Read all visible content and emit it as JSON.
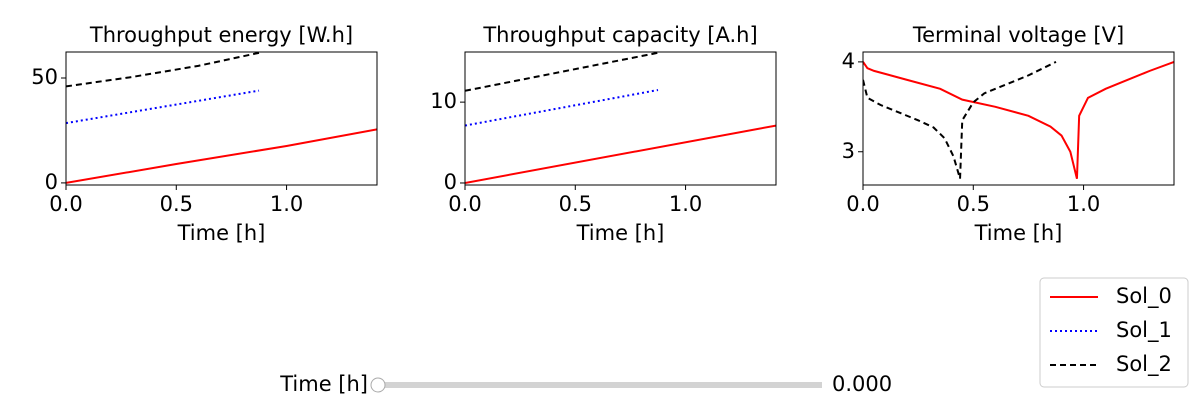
{
  "chart_data": [
    {
      "type": "line",
      "title": "Throughput energy [W.h]",
      "xlabel": "Time [h]",
      "xlim": [
        0,
        1.41
      ],
      "ylim": [
        -1,
        62.4
      ],
      "xticks": [
        {
          "value": 0,
          "label": "0.0"
        },
        0.5,
        {
          "value": 1,
          "label": "1.0"
        }
      ],
      "yticks": [
        0,
        50
      ],
      "series": [
        {
          "x": [
            0,
            0.5,
            1.0,
            1.41
          ],
          "values": [
            0,
            9,
            17.6,
            25.5
          ]
        },
        {
          "x": [
            0,
            0.875
          ],
          "values": [
            28.5,
            44
          ]
        },
        {
          "x": [
            0,
            0.3,
            0.6,
            0.875
          ],
          "values": [
            46,
            50.5,
            55.8,
            62
          ]
        }
      ]
    },
    {
      "type": "line",
      "title": "Throughput capacity [A.h]",
      "xlabel": "Time [h]",
      "xlim": [
        0,
        1.41
      ],
      "ylim": [
        -0.25,
        16.2
      ],
      "xticks": [
        {
          "value": 0,
          "label": "0.0"
        },
        0.5,
        {
          "value": 1,
          "label": "1.0"
        }
      ],
      "yticks": [
        0,
        10
      ],
      "series": [
        {
          "x": [
            0,
            1.41
          ],
          "values": [
            0,
            7.1
          ]
        },
        {
          "x": [
            0,
            0.875
          ],
          "values": [
            7.1,
            11.5
          ]
        },
        {
          "x": [
            0,
            0.875
          ],
          "values": [
            11.4,
            16.1
          ]
        }
      ]
    },
    {
      "type": "line",
      "title": "Terminal voltage [V]",
      "xlabel": "Time [h]",
      "xlim": [
        0,
        1.41
      ],
      "ylim": [
        2.63,
        4.11
      ],
      "xticks": [
        {
          "value": 0,
          "label": "0.0"
        },
        0.5,
        {
          "value": 1,
          "label": "1.0"
        }
      ],
      "yticks": [
        3,
        4
      ],
      "series": [
        {
          "x": [
            0,
            0.02,
            0.05,
            0.2,
            0.35,
            0.45,
            0.6,
            0.75,
            0.85,
            0.9,
            0.94,
            0.97,
            0.98,
            1.02,
            1.1,
            1.2,
            1.3,
            1.41
          ],
          "values": [
            4.0,
            3.93,
            3.9,
            3.8,
            3.7,
            3.58,
            3.5,
            3.4,
            3.28,
            3.18,
            3.0,
            2.7,
            3.4,
            3.6,
            3.7,
            3.8,
            3.9,
            4.0
          ]
        },
        {
          "x": [],
          "values": []
        },
        {
          "x": [
            0,
            0.02,
            0.08,
            0.15,
            0.25,
            0.32,
            0.37,
            0.41,
            0.44,
            0.45,
            0.5,
            0.55,
            0.65,
            0.75,
            0.875
          ],
          "values": [
            3.8,
            3.6,
            3.52,
            3.45,
            3.35,
            3.27,
            3.15,
            2.95,
            2.7,
            3.35,
            3.55,
            3.65,
            3.75,
            3.85,
            4.0
          ]
        }
      ]
    }
  ],
  "legend": {
    "loc": "lower right",
    "entries": [
      {
        "name": "Sol_0",
        "color": "#ff0000",
        "style": "solid"
      },
      {
        "name": "Sol_1",
        "color": "#0000ff",
        "style": "dotted"
      },
      {
        "name": "Sol_2",
        "color": "#000000",
        "style": "dashed"
      }
    ]
  },
  "slider": {
    "label": "Time [h]",
    "value": {
      "value": 0,
      "label": "0.000"
    }
  }
}
